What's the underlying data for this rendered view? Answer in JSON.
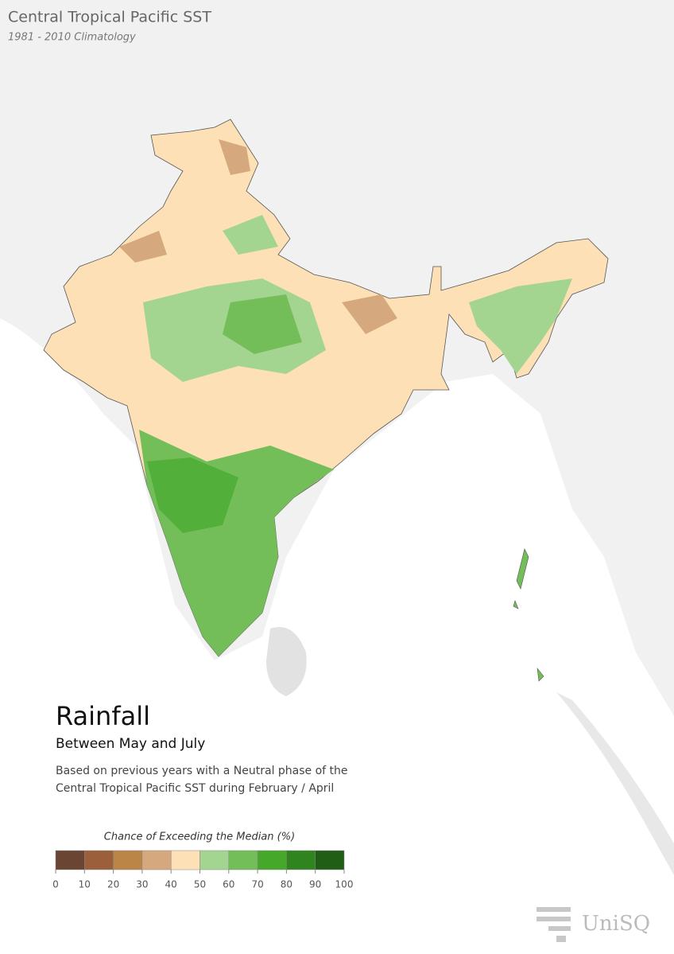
{
  "header": {
    "title": "Central Tropical Pacific SST",
    "subtitle": "1981 - 2010 Climatology"
  },
  "panel": {
    "title": "Rainfall",
    "subtitle": "Between May and July",
    "description": [
      "Based on previous years with a Neutral phase of the",
      "Central Tropical Pacific SST during February / April"
    ]
  },
  "legend": {
    "title": "Chance of Exceeding the Median (%)",
    "ticks": [
      0,
      10,
      20,
      30,
      40,
      50,
      60,
      70,
      80,
      90,
      100
    ],
    "colors": [
      "#6b4533",
      "#9c5f3c",
      "#bc8548",
      "#d5a97d",
      "#fde0b5",
      "#a3d591",
      "#74be5a",
      "#45a82b",
      "#2f8420",
      "#215e15"
    ]
  },
  "logo": {
    "text": "UniSQ"
  }
}
